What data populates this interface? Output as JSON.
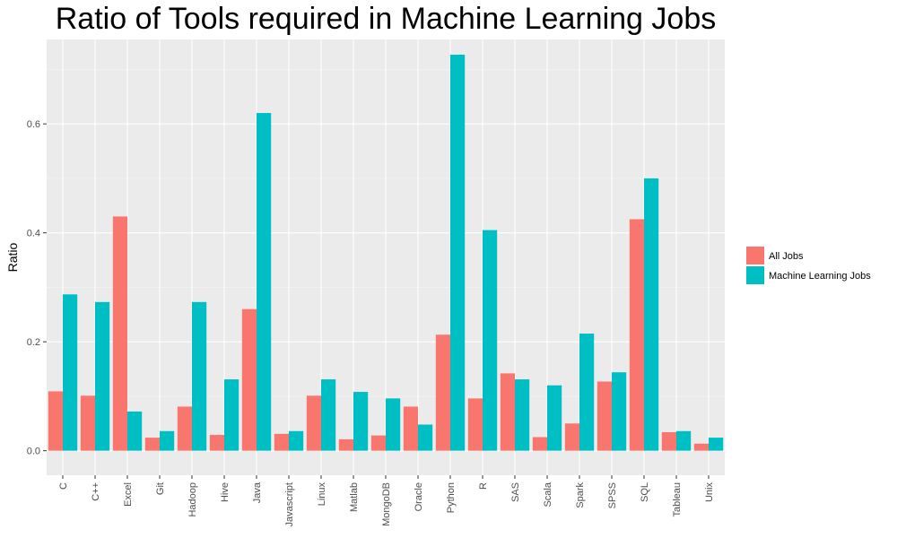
{
  "chart_data": {
    "type": "bar",
    "title": "Ratio of Tools required in Machine Learning Jobs",
    "xlabel": "",
    "ylabel": "Ratio",
    "ylim": [
      -0.045,
      0.755
    ],
    "yticks": [
      0.0,
      0.2,
      0.4,
      0.6
    ],
    "ytick_labels": [
      "0.0",
      "0.2",
      "0.4",
      "0.6"
    ],
    "grid": true,
    "legend_position": "right",
    "categories": [
      "C",
      "C++",
      "Excel",
      "Git",
      "Hadoop",
      "Hive",
      "Java",
      "Javascript",
      "Linux",
      "Matlab",
      "MongoDB",
      "Oracle",
      "Python",
      "R",
      "SAS",
      "Scala",
      "Spark",
      "SPSS",
      "SQL",
      "Tableau",
      "Unix"
    ],
    "series": [
      {
        "name": "All Jobs",
        "color": "#F8766D",
        "values": [
          0.109,
          0.101,
          0.43,
          0.024,
          0.081,
          0.029,
          0.26,
          0.031,
          0.101,
          0.021,
          0.028,
          0.081,
          0.213,
          0.096,
          0.142,
          0.025,
          0.05,
          0.127,
          0.425,
          0.034,
          0.013
        ]
      },
      {
        "name": "Machine Learning Jobs",
        "color": "#00BFC4",
        "values": [
          0.287,
          0.273,
          0.072,
          0.036,
          0.273,
          0.131,
          0.62,
          0.036,
          0.131,
          0.108,
          0.096,
          0.048,
          0.727,
          0.405,
          0.131,
          0.12,
          0.215,
          0.144,
          0.5,
          0.036,
          0.024
        ]
      }
    ],
    "style": {
      "panel_bg": "#EBEBEB",
      "grid_major": "#FFFFFF",
      "grid_minor": "#F5F5F5",
      "tick_color": "#333333"
    }
  }
}
